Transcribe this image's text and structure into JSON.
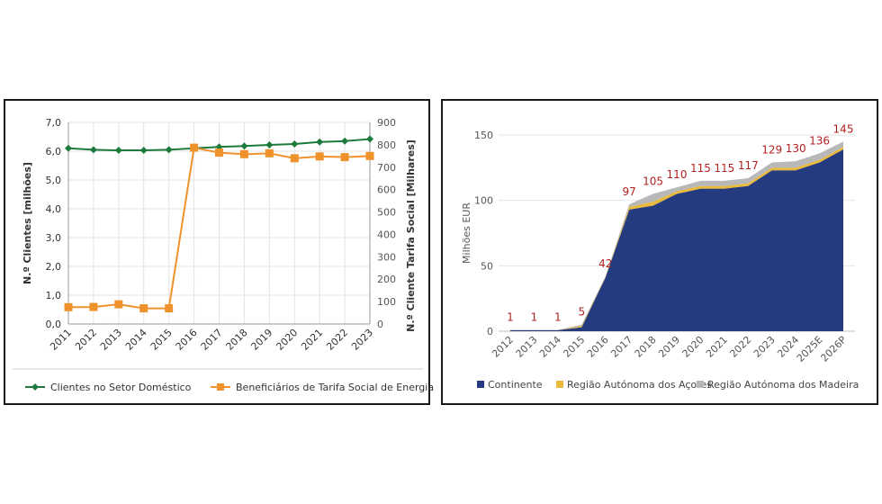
{
  "chart_data": [
    {
      "type": "line",
      "categories": [
        "2011",
        "2012",
        "2013",
        "2014",
        "2015",
        "2016",
        "2017",
        "2018",
        "2019",
        "2020",
        "2021",
        "2022",
        "2023"
      ],
      "series": [
        {
          "name": "Clientes no Setor Doméstico",
          "axis": "left",
          "color": "#1e7a3c",
          "values": [
            6.1,
            6.05,
            6.03,
            6.03,
            6.05,
            6.1,
            6.15,
            6.18,
            6.22,
            6.25,
            6.32,
            6.35,
            6.42
          ]
        },
        {
          "name": "Beneficiários de Tarifa Social de Energia",
          "axis": "right",
          "color": "#f0922b",
          "values": [
            75,
            76,
            88,
            70,
            70,
            787,
            765,
            758,
            762,
            740,
            748,
            745,
            750
          ]
        }
      ],
      "ylim_left": [
        0,
        7
      ],
      "yticks_left": [
        "0,0",
        "1,0",
        "2,0",
        "3,0",
        "4,0",
        "5,0",
        "6,0",
        "7,0"
      ],
      "ylim_right": [
        0,
        900
      ],
      "yticks_right": [
        "0",
        "100",
        "200",
        "300",
        "400",
        "500",
        "600",
        "700",
        "800",
        "900"
      ],
      "ylabel_left": "N.º Clientes [milhões]",
      "ylabel_right": "N.º Cliente Tarifa Social [Milhares]",
      "grid": true,
      "legend": "bottom"
    },
    {
      "type": "area",
      "stacked": true,
      "categories": [
        "2012",
        "2013",
        "2014",
        "2015",
        "2016",
        "2017",
        "2018",
        "2019",
        "2020",
        "2021",
        "2022",
        "2023",
        "2024",
        "2025E",
        "2026P"
      ],
      "series": [
        {
          "name": "Continente",
          "color": "#253b80",
          "values": [
            0.8,
            0.8,
            0.8,
            3,
            41,
            93,
            96,
            105,
            109,
            109,
            111,
            123,
            123,
            129,
            139
          ]
        },
        {
          "name": "Região Autónoma dos Açores",
          "color": "#e8b93a",
          "values": [
            0.1,
            0.1,
            0.1,
            1,
            0.5,
            2,
            3,
            2,
            2,
            2,
            2,
            2,
            2,
            2,
            2
          ]
        },
        {
          "name": "Região Autónoma dos Madeira",
          "color": "#b8b8b8",
          "values": [
            0.1,
            0.1,
            0.1,
            1,
            0.5,
            2,
            6,
            3,
            4,
            4,
            4,
            4,
            5,
            5,
            4
          ]
        }
      ],
      "totals": [
        "1",
        "1",
        "1",
        "5",
        "42",
        "97",
        "105",
        "110",
        "115",
        "115",
        "117",
        "129",
        "130",
        "136",
        "145"
      ],
      "ylabel": "Milhões EUR",
      "ylim": [
        0,
        150
      ],
      "yticks": [
        "0",
        "50",
        "100",
        "150"
      ],
      "grid": true,
      "legend": "bottom"
    }
  ]
}
